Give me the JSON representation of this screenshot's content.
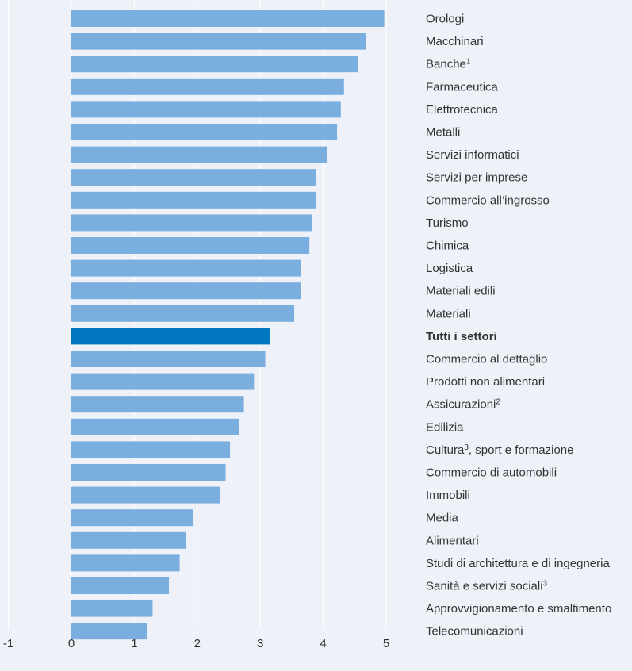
{
  "chart_data": {
    "type": "bar",
    "orientation": "horizontal",
    "categories": [
      {
        "label": "Orologi",
        "sup": ""
      },
      {
        "label": "Macchinari",
        "sup": ""
      },
      {
        "label": "Banche",
        "sup": "1"
      },
      {
        "label": "Farmaceutica",
        "sup": ""
      },
      {
        "label": "Elettrotecnica",
        "sup": ""
      },
      {
        "label": "Metalli",
        "sup": ""
      },
      {
        "label": "Servizi informatici",
        "sup": ""
      },
      {
        "label": "Servizi per imprese",
        "sup": ""
      },
      {
        "label": "Commercio all’ingrosso",
        "sup": ""
      },
      {
        "label": "Turismo",
        "sup": ""
      },
      {
        "label": "Chimica",
        "sup": ""
      },
      {
        "label": "Logistica",
        "sup": ""
      },
      {
        "label": "Materiali edili",
        "sup": ""
      },
      {
        "label": "Materiali",
        "sup": ""
      },
      {
        "label": "Tutti i settori",
        "sup": "",
        "highlight": true
      },
      {
        "label": "Commercio al dettaglio",
        "sup": ""
      },
      {
        "label": "Prodotti non alimentari",
        "sup": ""
      },
      {
        "label": "Assicurazioni",
        "sup": "2"
      },
      {
        "label": "Edilizia",
        "sup": ""
      },
      {
        "label": "Cultura",
        "sup": "3",
        "suffix": ", sport e formazione"
      },
      {
        "label": "Commercio di automobili",
        "sup": ""
      },
      {
        "label": "Immobili",
        "sup": ""
      },
      {
        "label": "Media",
        "sup": ""
      },
      {
        "label": "Alimentari",
        "sup": ""
      },
      {
        "label": "Studi di architettura e di ingegneria",
        "sup": ""
      },
      {
        "label": "Sanità e servizi sociali",
        "sup": "3"
      },
      {
        "label": "Approvvigionamento e smaltimento",
        "sup": ""
      },
      {
        "label": "Telecomunicazioni",
        "sup": ""
      }
    ],
    "values": [
      4.97,
      4.68,
      4.55,
      4.33,
      4.28,
      4.22,
      4.06,
      3.89,
      3.89,
      3.82,
      3.78,
      3.65,
      3.65,
      3.54,
      3.15,
      3.08,
      2.9,
      2.74,
      2.66,
      2.52,
      2.45,
      2.36,
      1.93,
      1.82,
      1.72,
      1.55,
      1.29,
      1.21
    ],
    "xlim": [
      -1,
      5
    ],
    "xticks": [
      "-1",
      "0",
      "1",
      "2",
      "3",
      "4",
      "5"
    ],
    "grid": true,
    "colors": {
      "bar": "#7aaedf",
      "highlight": "#0077c0",
      "background": "#eef2f8",
      "grid": "#ffffff",
      "text": "#333333"
    }
  }
}
